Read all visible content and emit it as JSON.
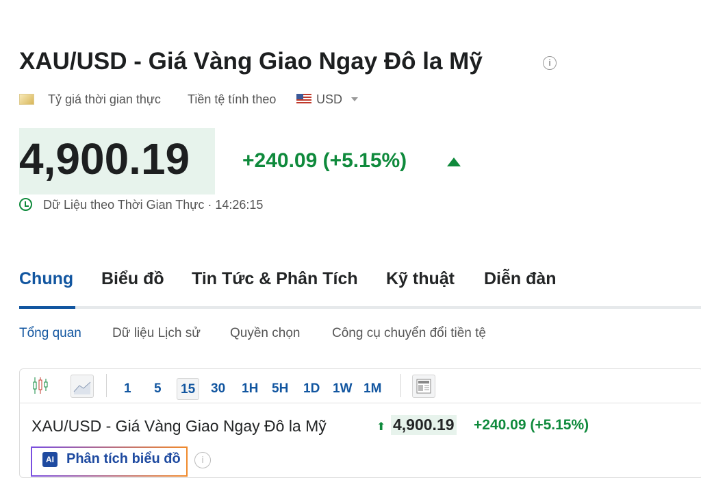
{
  "header": {
    "title": "XAU/USD - Giá Vàng Giao Ngay Đô la Mỹ",
    "info_icon": "info-icon",
    "realtime_label": "Tỷ giá thời gian thực",
    "currency_label": "Tiền tệ tính theo",
    "currency": "USD"
  },
  "quote": {
    "price": "4,900.19",
    "change": "+240.09 (+5.15%)",
    "direction": "up",
    "data_label": "Dữ Liệu theo Thời Gian Thực · 14:26:15",
    "positive_color": "#0f8a3c"
  },
  "tabs": [
    {
      "label": "Chung",
      "active": true
    },
    {
      "label": "Biểu đồ"
    },
    {
      "label": "Tin Tức & Phân Tích"
    },
    {
      "label": "Kỹ thuật"
    },
    {
      "label": "Diễn đàn"
    }
  ],
  "subtabs": [
    "Tổng quan",
    "Dữ liệu Lịch sử",
    "Quyền chọn",
    "Công cụ chuyển đổi tiền tệ"
  ],
  "chart_toolbar": {
    "timeframes": [
      "1",
      "5",
      "15",
      "30",
      "1H",
      "5H",
      "1D",
      "1W",
      "1M"
    ],
    "selected": "15"
  },
  "chart_header": {
    "title": "XAU/USD - Giá Vàng Giao Ngay Đô la Mỹ",
    "price": "4,900.19",
    "change": "+240.09",
    "percent": "(+5.15%)",
    "ai_badge": "AI",
    "ai_button": "Phân tích biểu đồ"
  }
}
